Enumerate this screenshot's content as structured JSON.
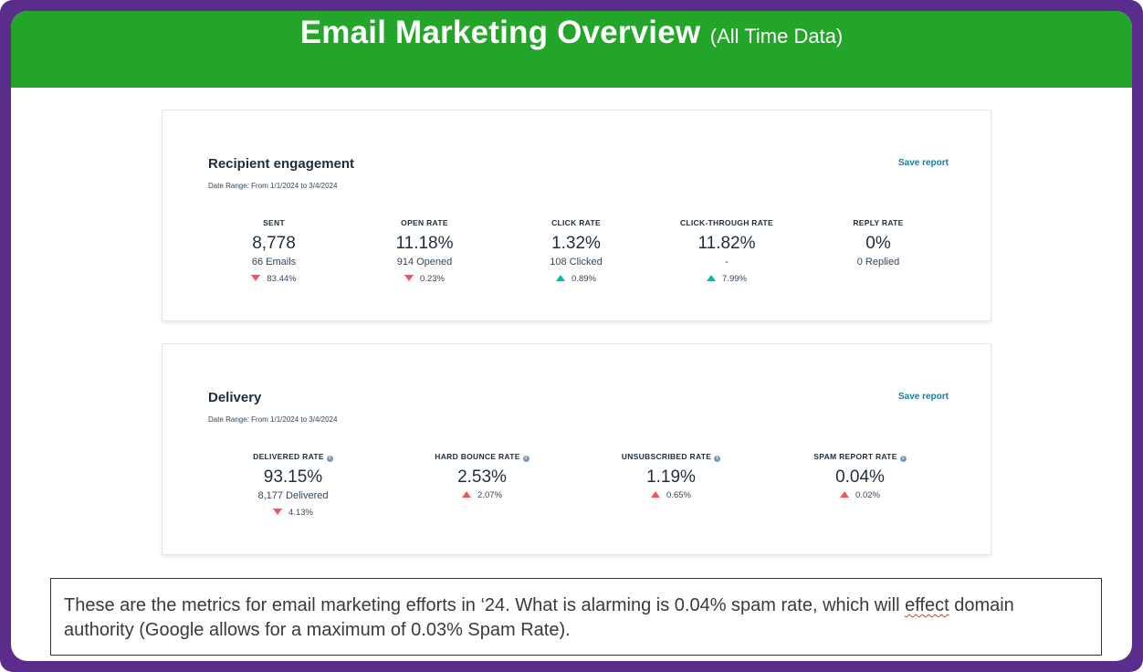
{
  "banner": {
    "title": "Email Marketing Overview",
    "subtitle": "(All Time Data)",
    "color": "#22a528"
  },
  "frame_color": "#5a2d8c",
  "engagement": {
    "title": "Recipient engagement",
    "date_range": "Date Range: From 1/1/2024 to 3/4/2024",
    "save_label": "Save report",
    "metrics": [
      {
        "label": "SENT",
        "value": "8,778",
        "detail": "66 Emails",
        "change": "83.44%",
        "direction": "down"
      },
      {
        "label": "OPEN RATE",
        "value": "11.18%",
        "detail": "914 Opened",
        "change": "0.23%",
        "direction": "down"
      },
      {
        "label": "CLICK RATE",
        "value": "1.32%",
        "detail": "108 Clicked",
        "change": "0.89%",
        "direction": "up"
      },
      {
        "label": "CLICK-THROUGH RATE",
        "value": "11.82%",
        "detail": "-",
        "change": "7.99%",
        "direction": "up"
      },
      {
        "label": "REPLY RATE",
        "value": "0%",
        "detail": "0 Replied",
        "change": "",
        "direction": ""
      }
    ]
  },
  "delivery": {
    "title": "Delivery",
    "date_range": "Date Range: From 1/1/2024 to 3/4/2024",
    "save_label": "Save report",
    "metrics": [
      {
        "label": "DELIVERED RATE",
        "value": "93.15%",
        "detail": "8,177 Delivered",
        "change": "4.13%",
        "direction": "down"
      },
      {
        "label": "HARD BOUNCE RATE",
        "value": "2.53%",
        "detail": "",
        "change": "2.07%",
        "direction": "up"
      },
      {
        "label": "UNSUBSCRIBED RATE",
        "value": "1.19%",
        "detail": "",
        "change": "0.65%",
        "direction": "up"
      },
      {
        "label": "SPAM REPORT RATE",
        "value": "0.04%",
        "detail": "",
        "change": "0.02%",
        "direction": "up"
      }
    ]
  },
  "note": {
    "text_before": "These are the metrics for email marketing efforts in ‘24. What is alarming is 0.04% spam rate, which will ",
    "text_flagged": "effect",
    "text_after": " domain authority (Google allows for a maximum of 0.03% Spam Rate)."
  }
}
